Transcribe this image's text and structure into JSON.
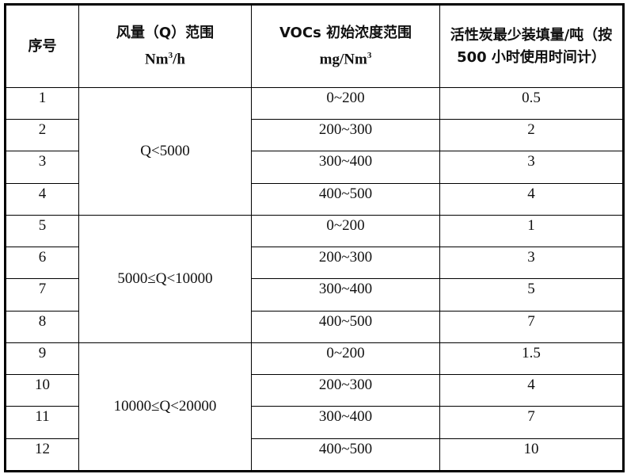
{
  "headers": {
    "index": "序号",
    "flow_line1": "风量（Q）范围",
    "flow_line2_base": "Nm",
    "flow_line2_sup": "3",
    "flow_line2_suffix": "/h",
    "voc_line1": "VOCs 初始浓度范围",
    "voc_line2_base": "mg/Nm",
    "voc_line2_sup": "3",
    "carbon": "活性炭最少装填量/吨（按 500 小时使用时间计）"
  },
  "groups": [
    {
      "flow": "Q<5000",
      "rows": [
        {
          "index": "1",
          "voc": "0~200",
          "carbon": "0.5"
        },
        {
          "index": "2",
          "voc": "200~300",
          "carbon": "2"
        },
        {
          "index": "3",
          "voc": "300~400",
          "carbon": "3"
        },
        {
          "index": "4",
          "voc": "400~500",
          "carbon": "4"
        }
      ]
    },
    {
      "flow": "5000≤Q<10000",
      "rows": [
        {
          "index": "5",
          "voc": "0~200",
          "carbon": "1"
        },
        {
          "index": "6",
          "voc": "200~300",
          "carbon": "3"
        },
        {
          "index": "7",
          "voc": "300~400",
          "carbon": "5"
        },
        {
          "index": "8",
          "voc": "400~500",
          "carbon": "7"
        }
      ]
    },
    {
      "flow": "10000≤Q<20000",
      "rows": [
        {
          "index": "9",
          "voc": "0~200",
          "carbon": "1.5"
        },
        {
          "index": "10",
          "voc": "200~300",
          "carbon": "4"
        },
        {
          "index": "11",
          "voc": "300~400",
          "carbon": "7"
        },
        {
          "index": "12",
          "voc": "400~500",
          "carbon": "10"
        }
      ]
    }
  ]
}
